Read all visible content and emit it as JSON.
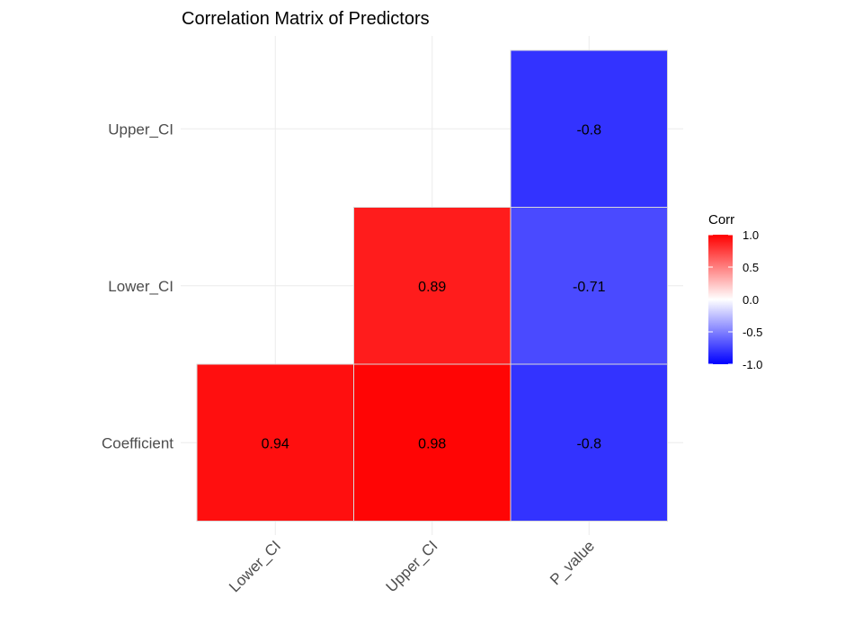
{
  "chart_data": {
    "type": "heatmap",
    "title": "Correlation Matrix of Predictors",
    "xlabel": "",
    "ylabel": "",
    "x_categories": [
      "Lower_CI",
      "Upper_CI",
      "P_value"
    ],
    "y_categories": [
      "Coefficient",
      "Lower_CI",
      "Upper_CI"
    ],
    "cells": [
      {
        "x": "Lower_CI",
        "y": "Coefficient",
        "value": 0.94,
        "label": "0.94"
      },
      {
        "x": "Upper_CI",
        "y": "Coefficient",
        "value": 0.98,
        "label": "0.98"
      },
      {
        "x": "P_value",
        "y": "Coefficient",
        "value": -0.8,
        "label": "-0.8"
      },
      {
        "x": "Upper_CI",
        "y": "Lower_CI",
        "value": 0.89,
        "label": "0.89"
      },
      {
        "x": "P_value",
        "y": "Lower_CI",
        "value": -0.71,
        "label": "-0.71"
      },
      {
        "x": "P_value",
        "y": "Upper_CI",
        "value": -0.8,
        "label": "-0.8"
      }
    ],
    "legend": {
      "title": "Corr",
      "range": [
        -1.0,
        1.0
      ],
      "ticks": [
        1.0,
        0.5,
        0.0,
        -0.5,
        -1.0
      ],
      "tick_labels": [
        "1.0",
        "0.5",
        "0.0",
        "-0.5",
        "-1.0"
      ],
      "placement": "right"
    },
    "colors": {
      "low": "#0000ff",
      "mid": "#ffffff",
      "high": "#ff0000"
    },
    "grid": true
  }
}
